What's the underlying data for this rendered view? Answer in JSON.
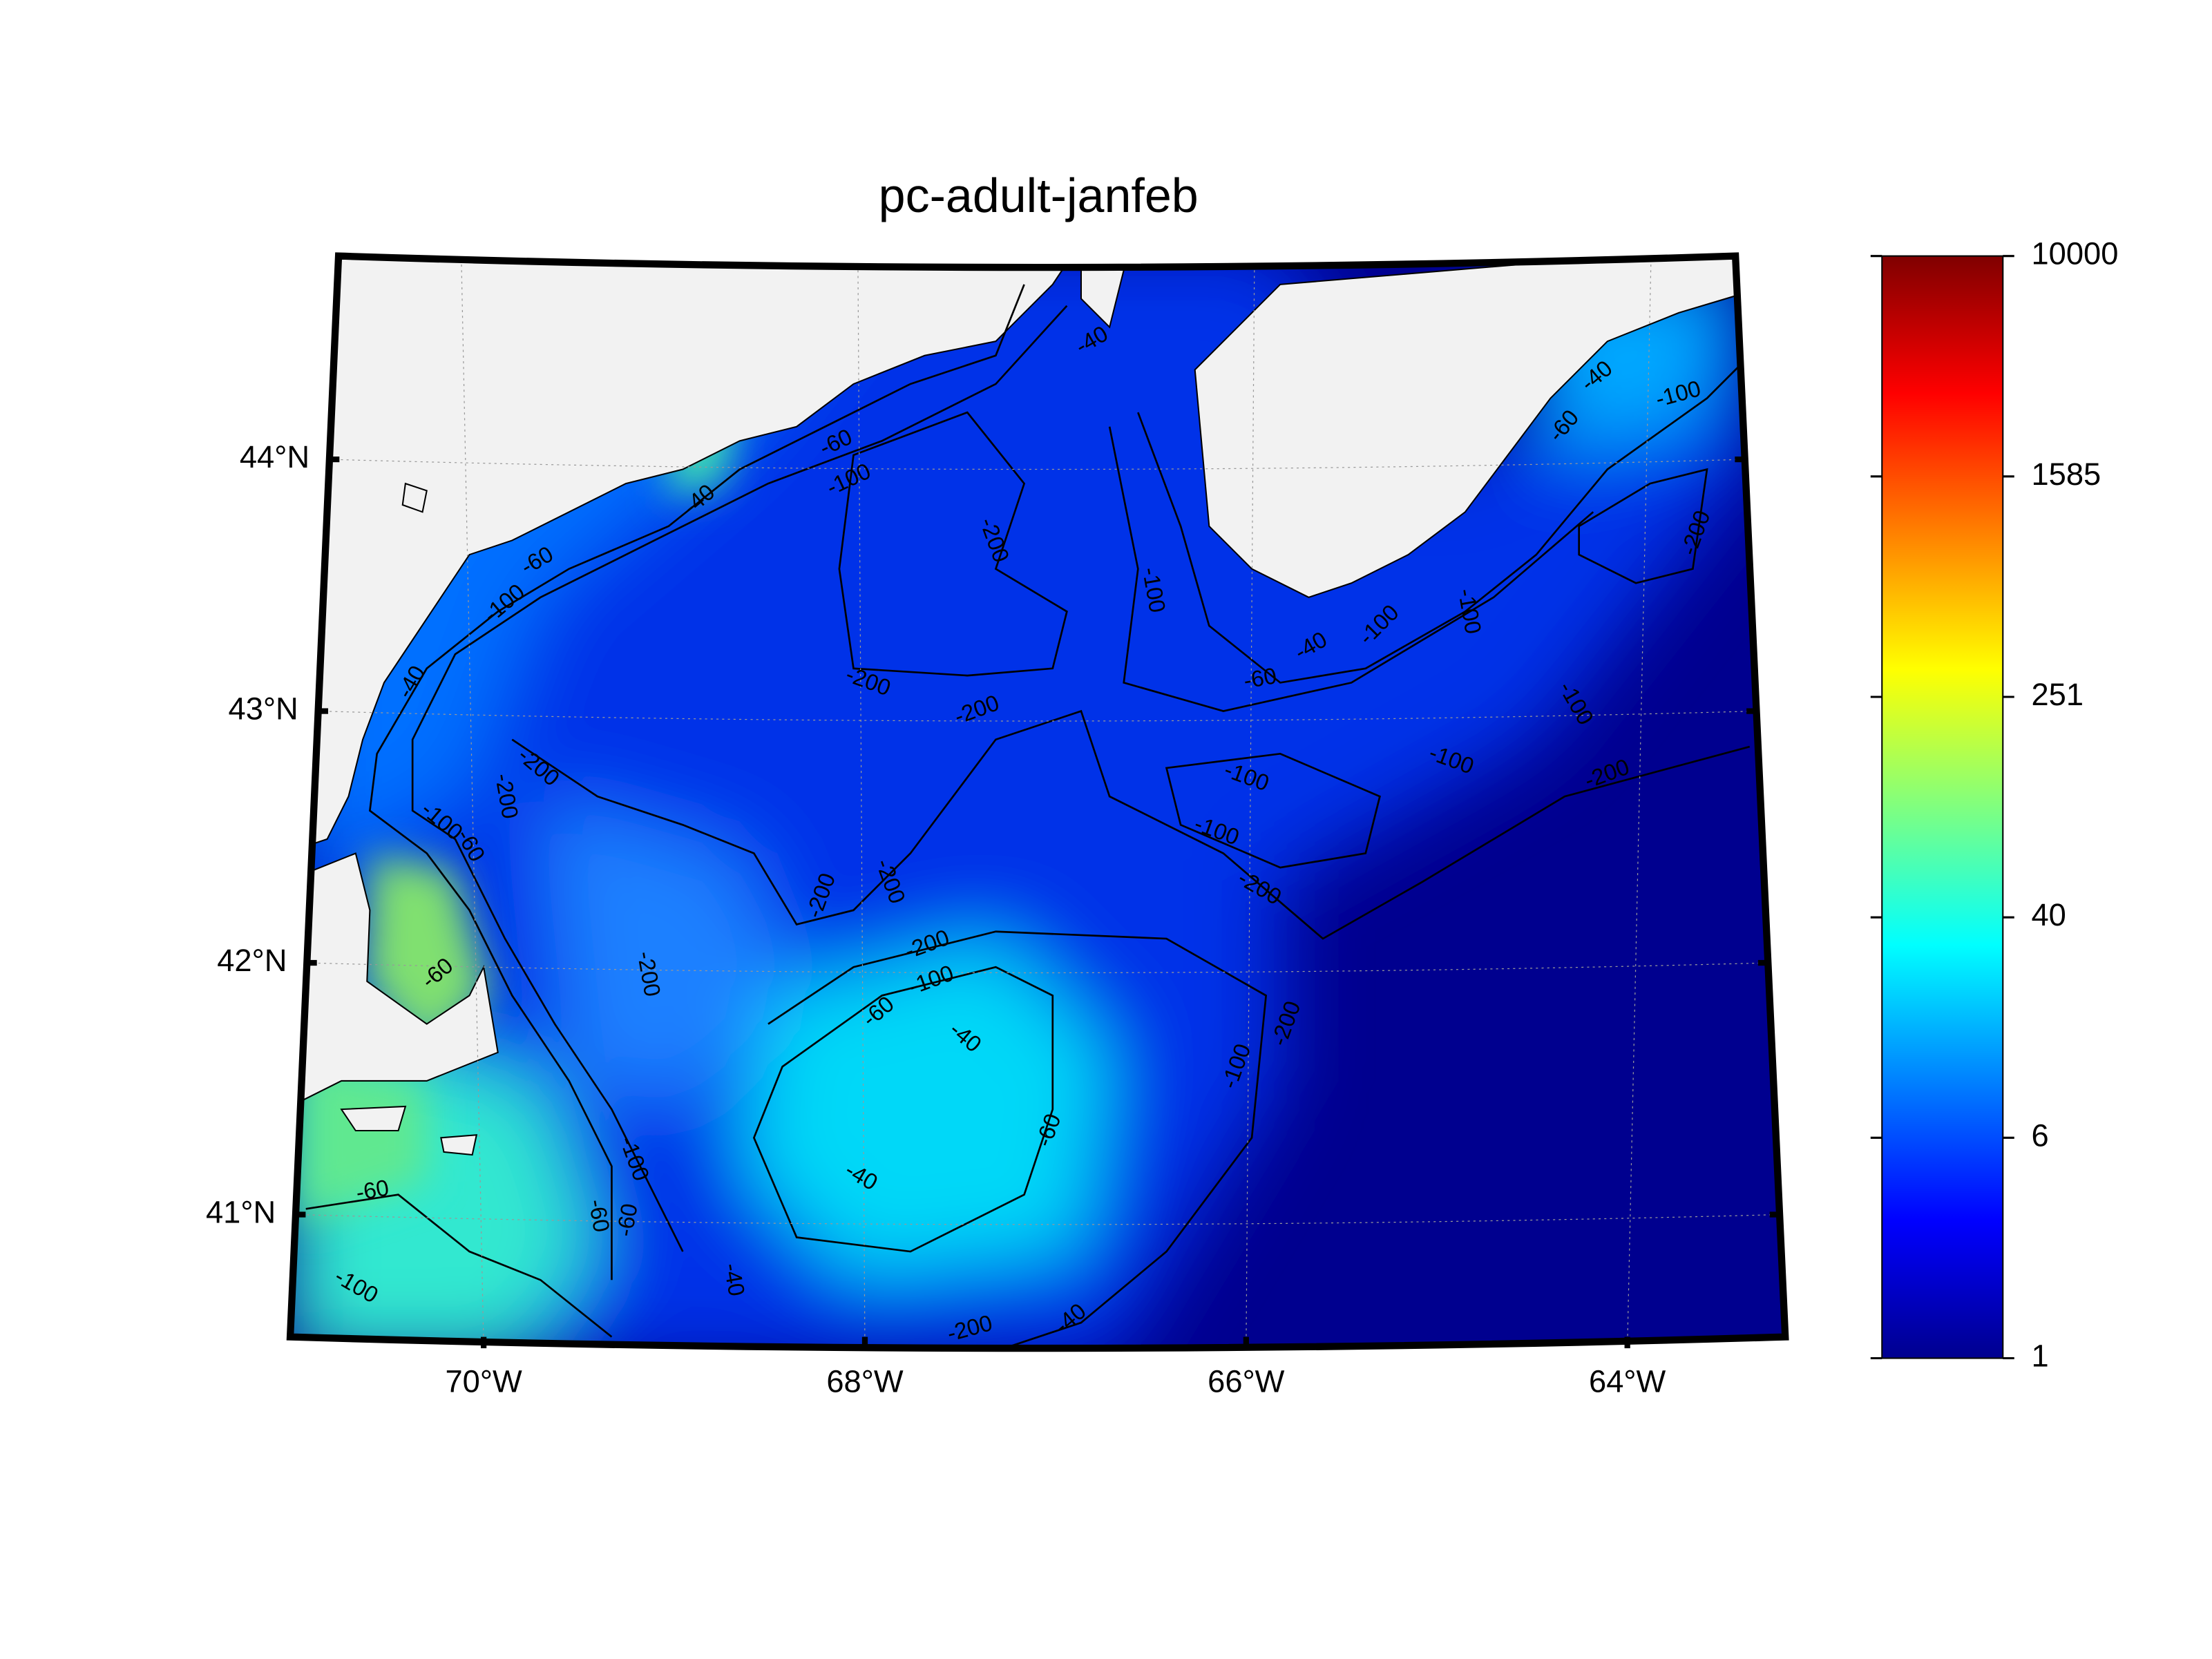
{
  "title": "pc-adult-janfeb",
  "map": {
    "lon_ticks": [
      {
        "value": -70,
        "label": "70°W"
      },
      {
        "value": -68,
        "label": "68°W"
      },
      {
        "value": -66,
        "label": "66°W"
      },
      {
        "value": -64,
        "label": "64°W"
      }
    ],
    "lat_ticks": [
      {
        "value": 44,
        "label": "44°N"
      },
      {
        "value": 43,
        "label": "43°N"
      },
      {
        "value": 42,
        "label": "42°N"
      },
      {
        "value": 41,
        "label": "41°N"
      }
    ],
    "contour_labels": [
      "-40",
      "-100",
      "-60",
      "-40",
      "-60",
      "-100",
      "-40",
      "-200",
      "-100",
      "-200",
      "-200",
      "-60",
      "-40",
      "-100",
      "-100",
      "-40",
      "-60",
      "-100",
      "-200",
      "-100",
      "-100",
      "-100",
      "-200",
      "-100",
      "-200",
      "-200",
      "-200",
      "-100",
      "-60",
      "-200",
      "-200",
      "-200",
      "-200",
      "-100",
      "-60",
      "-40",
      "-200",
      "-100",
      "-60",
      "-40",
      "-100",
      "-60",
      "-60",
      "-40",
      "-60",
      "-100",
      "-200",
      "-40",
      "-60"
    ]
  },
  "colorbar": {
    "scale": "log",
    "lim": [
      1,
      10000
    ],
    "ticks": [
      1,
      {
        "value": 6.3096,
        "label": "6"
      },
      {
        "value": 39.811,
        "label": "40"
      },
      {
        "value": 251.19,
        "label": "251"
      },
      {
        "value": 1584.9,
        "label": "1585"
      },
      10000
    ]
  }
}
